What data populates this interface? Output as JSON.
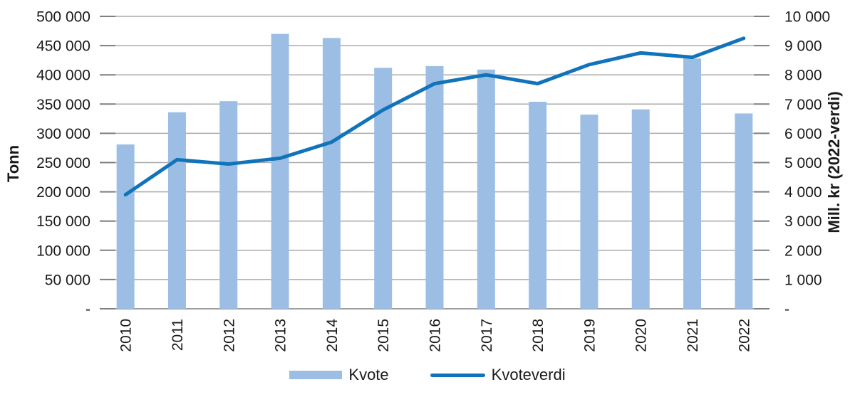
{
  "chart_data": {
    "type": "bar+line",
    "categories": [
      "2010",
      "2011",
      "2012",
      "2013",
      "2014",
      "2015",
      "2016",
      "2017",
      "2018",
      "2019",
      "2020",
      "2021",
      "2022"
    ],
    "series": [
      {
        "name": "Kvote",
        "type": "bar",
        "axis": "left",
        "values": [
          281000,
          336000,
          355000,
          470000,
          463000,
          412000,
          415000,
          409000,
          354000,
          332000,
          341000,
          428000,
          334000
        ]
      },
      {
        "name": "Kvoteverdi",
        "type": "line",
        "axis": "right",
        "values": [
          3900,
          5100,
          4950,
          5150,
          5700,
          6800,
          7700,
          8000,
          7700,
          8350,
          8750,
          8600,
          9250
        ]
      }
    ],
    "left_axis": {
      "title": "Tonn",
      "min": 0,
      "max": 500000,
      "tick_step": 50000,
      "tick_labels": [
        "500 000",
        "450 000",
        "400 000",
        "350 000",
        "300 000",
        "250 000",
        "200 000",
        "150 000",
        "100 000",
        "50 000",
        "-"
      ]
    },
    "right_axis": {
      "title": "Mill. kr (2022-verdi)",
      "min": 0,
      "max": 10000,
      "tick_step": 1000,
      "tick_labels": [
        "10 000",
        "9 000",
        "8 000",
        "7 000",
        "6 000",
        "5 000",
        "4 000",
        "3 000",
        "2 000",
        "1 000",
        "-"
      ]
    },
    "legend": {
      "position": "bottom",
      "items": [
        {
          "label": "Kvote",
          "swatch": "bar"
        },
        {
          "label": "Kvoteverdi",
          "swatch": "line"
        }
      ]
    },
    "grid": true
  },
  "colors": {
    "bar": "#9CBEE5",
    "line": "#1173BA",
    "gridline": "#AAAAAA",
    "axis_line": "#7F7F7F",
    "text": "#1A1A1A"
  }
}
